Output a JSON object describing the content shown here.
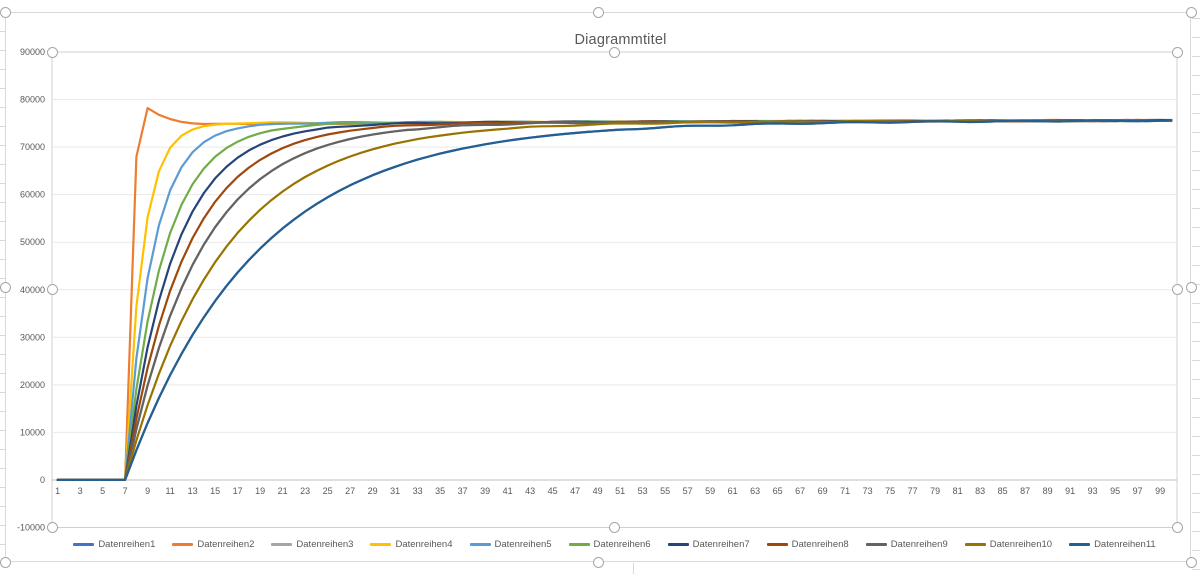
{
  "chart": {
    "title": "Diagrammtitel"
  },
  "chart_data": {
    "type": "line",
    "title": "Diagrammtitel",
    "x_axis": {
      "from": 1,
      "to": 100,
      "tick_start": 1,
      "tick_end": 99,
      "tick_step": 2
    },
    "y_axis": {
      "min": -10000,
      "max": 90000,
      "tick_step": 10000
    },
    "grid": "horizontal",
    "legend_position": "bottom",
    "step_start_x": 7,
    "asymptote": {
      "base": 75050,
      "slope_per_step": 6
    },
    "noise": {
      "amp": 110,
      "freq": 0.85,
      "threshold": 73800
    },
    "series": [
      {
        "name": "Datenreihen1",
        "color": "#4472C4",
        "model": "exp",
        "tau": 11.5,
        "phase": 10
      },
      {
        "name": "Datenreihen2",
        "color": "#ED7D31",
        "model": "profile",
        "phase": 1,
        "profile": {
          "8": 68000,
          "9": 78200,
          "10": 76800,
          "11": 75900,
          "12": 75300,
          "13": 75000,
          "14": 74850
        },
        "settle": {
          "base": 74850,
          "slope": 10,
          "cap": 75600
        }
      },
      {
        "name": "Datenreihen3",
        "color": "#A5A5A5",
        "model": "exp",
        "tau": 6.5,
        "phase": 8
      },
      {
        "name": "Datenreihen4",
        "color": "#FFC000",
        "model": "exp",
        "tau": 1.5,
        "phase": 3
      },
      {
        "name": "Datenreihen5",
        "color": "#5B9BD5",
        "model": "exp",
        "tau": 2.4,
        "phase": 4
      },
      {
        "name": "Datenreihen6",
        "color": "#70AD47",
        "model": "exp",
        "tau": 3.4,
        "phase": 5
      },
      {
        "name": "Datenreihen7",
        "color": "#264478",
        "model": "exp",
        "tau": 4.3,
        "phase": 6
      },
      {
        "name": "Datenreihen8",
        "color": "#9E480E",
        "model": "exp",
        "tau": 5.3,
        "phase": 7
      },
      {
        "name": "Datenreihen9",
        "color": "#636363",
        "model": "exp",
        "tau": 6.5,
        "phase": 8
      },
      {
        "name": "Datenreihen10",
        "color": "#997300",
        "model": "exp",
        "tau": 8.5,
        "phase": 9
      },
      {
        "name": "Datenreihen11",
        "color": "#255E91",
        "model": "exp",
        "tau": 11.5,
        "phase": 10
      }
    ]
  },
  "colors": {
    "background": "#FFFFFF",
    "title_text": "#595959",
    "axis_text": "#595959",
    "legend_text": "#595959",
    "gridline": "#E9E9E9",
    "axis_line": "#BFBFBF",
    "plot_border": "#D0D0D0",
    "chart_border": "#D9D9D9",
    "handle_border": "#A6A6A6"
  }
}
